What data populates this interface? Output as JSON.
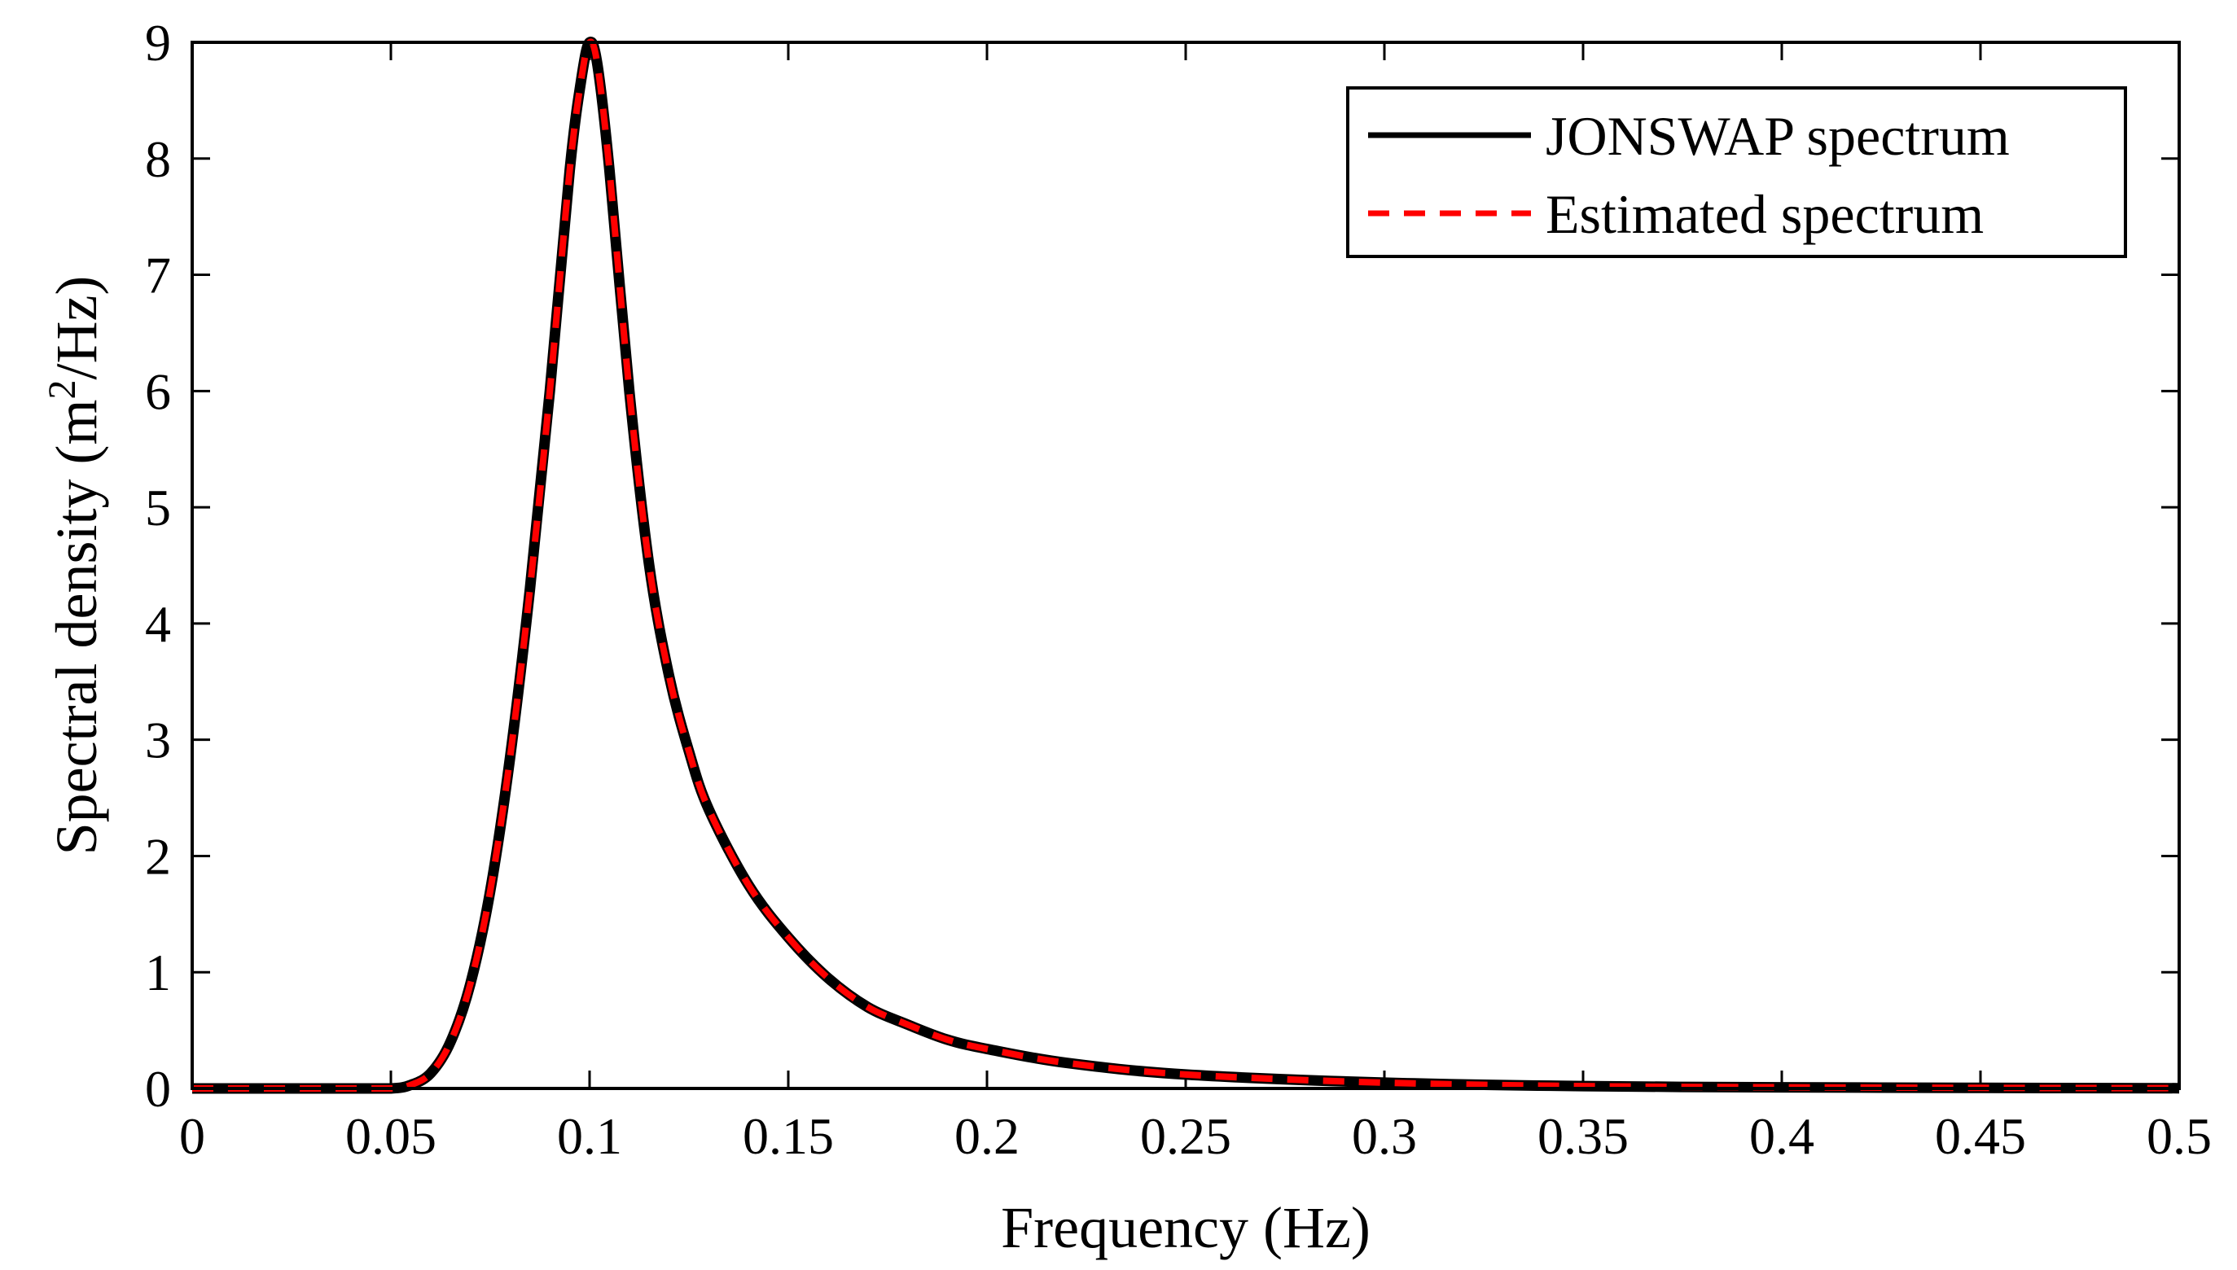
{
  "chart_data": {
    "type": "line",
    "title": "",
    "xlabel": "Frequency (Hz)",
    "ylabel_prefix": "Spectral density (m",
    "ylabel_superscript": "2",
    "ylabel_suffix": "/Hz)",
    "xlim": [
      0,
      0.5
    ],
    "ylim": [
      0,
      9
    ],
    "xticks": [
      0,
      0.05,
      0.1,
      0.15,
      0.2,
      0.25,
      0.3,
      0.35,
      0.4,
      0.45,
      0.5
    ],
    "xtick_labels": [
      "0",
      "0.05",
      "0.1",
      "0.15",
      "0.2",
      "0.25",
      "0.3",
      "0.35",
      "0.4",
      "0.45",
      "0.5"
    ],
    "yticks": [
      0,
      1,
      2,
      3,
      4,
      5,
      6,
      7,
      8,
      9
    ],
    "ytick_labels": [
      "0",
      "1",
      "2",
      "3",
      "4",
      "5",
      "6",
      "7",
      "8",
      "9"
    ],
    "grid": false,
    "legend_position": "top-right",
    "series": [
      {
        "name": "JONSWAP spectrum",
        "color": "#000000",
        "style": "solid",
        "x": [
          0,
          0.04,
          0.05,
          0.055,
          0.06,
          0.065,
          0.07,
          0.075,
          0.08,
          0.085,
          0.09,
          0.095,
          0.098,
          0.1,
          0.102,
          0.105,
          0.11,
          0.115,
          0.12,
          0.125,
          0.13,
          0.14,
          0.15,
          0.16,
          0.17,
          0.18,
          0.19,
          0.2,
          0.22,
          0.25,
          0.3,
          0.35,
          0.4,
          0.45,
          0.5
        ],
        "y": [
          0,
          0,
          0,
          0.03,
          0.13,
          0.4,
          0.9,
          1.7,
          2.85,
          4.3,
          6.0,
          7.9,
          8.7,
          9.0,
          8.8,
          7.9,
          6.0,
          4.5,
          3.55,
          2.9,
          2.4,
          1.75,
          1.3,
          0.95,
          0.7,
          0.55,
          0.42,
          0.34,
          0.22,
          0.12,
          0.05,
          0.02,
          0.01,
          0.005,
          0.002
        ]
      },
      {
        "name": "Estimated spectrum",
        "color": "#ff0000",
        "style": "dashed",
        "x": [
          0,
          0.04,
          0.05,
          0.055,
          0.06,
          0.065,
          0.07,
          0.075,
          0.08,
          0.085,
          0.09,
          0.095,
          0.098,
          0.1,
          0.102,
          0.105,
          0.11,
          0.115,
          0.12,
          0.125,
          0.13,
          0.14,
          0.15,
          0.16,
          0.17,
          0.18,
          0.19,
          0.2,
          0.22,
          0.25,
          0.3,
          0.35,
          0.4,
          0.45,
          0.5
        ],
        "y": [
          0,
          0,
          0,
          0.03,
          0.13,
          0.4,
          0.9,
          1.7,
          2.85,
          4.3,
          6.0,
          7.9,
          8.7,
          9.0,
          8.8,
          7.9,
          6.0,
          4.5,
          3.55,
          2.9,
          2.4,
          1.75,
          1.3,
          0.95,
          0.7,
          0.55,
          0.42,
          0.34,
          0.22,
          0.12,
          0.05,
          0.02,
          0.01,
          0.005,
          0.002
        ]
      }
    ]
  }
}
